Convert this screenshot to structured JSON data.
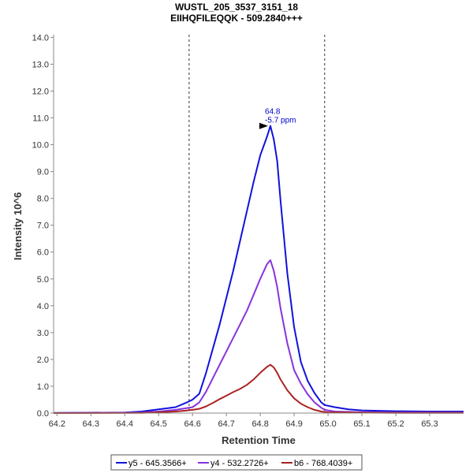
{
  "chart_data": {
    "type": "line",
    "title": "WUSTL_205_3537_3151_18",
    "subtitle": "EIIHQFILEQQK - 509.2840+++",
    "xlabel": "Retention Time",
    "ylabel": "Intensity 10^6",
    "xlim": [
      64.19,
      65.4
    ],
    "ylim": [
      0,
      14.1
    ],
    "x_ticks": [
      "64.2",
      "64.3",
      "64.4",
      "64.5",
      "64.6",
      "64.7",
      "64.8",
      "64.9",
      "65.0",
      "65.1",
      "65.2",
      "65.3"
    ],
    "y_ticks": [
      "0.0",
      "1.0",
      "2.0",
      "3.0",
      "4.0",
      "5.0",
      "6.0",
      "7.0",
      "8.0",
      "9.0",
      "10.0",
      "11.0",
      "12.0",
      "13.0",
      "14.0"
    ],
    "grid": false,
    "legend_position": "bottom",
    "integration_bounds": [
      64.59,
      64.99
    ],
    "annotation": {
      "x": 64.83,
      "y": 10.7,
      "line1": "64.8",
      "line2": "-5.7 ppm"
    },
    "series": [
      {
        "name": "y5 - 645.3566+",
        "color": "#1111dd",
        "points": [
          [
            64.19,
            0.01
          ],
          [
            64.4,
            0.02
          ],
          [
            64.45,
            0.06
          ],
          [
            64.5,
            0.14
          ],
          [
            64.55,
            0.22
          ],
          [
            64.58,
            0.38
          ],
          [
            64.6,
            0.5
          ],
          [
            64.62,
            0.72
          ],
          [
            64.64,
            1.5
          ],
          [
            64.66,
            2.4
          ],
          [
            64.68,
            3.3
          ],
          [
            64.7,
            4.3
          ],
          [
            64.72,
            5.3
          ],
          [
            64.74,
            6.4
          ],
          [
            64.76,
            7.5
          ],
          [
            64.78,
            8.6
          ],
          [
            64.8,
            9.6
          ],
          [
            64.82,
            10.3
          ],
          [
            64.83,
            10.7
          ],
          [
            64.84,
            10.2
          ],
          [
            64.85,
            9.4
          ],
          [
            64.86,
            7.9
          ],
          [
            64.88,
            5.2
          ],
          [
            64.9,
            3.2
          ],
          [
            64.92,
            1.9
          ],
          [
            64.94,
            1.2
          ],
          [
            64.96,
            0.75
          ],
          [
            64.98,
            0.4
          ],
          [
            64.99,
            0.3
          ],
          [
            65.02,
            0.22
          ],
          [
            65.06,
            0.14
          ],
          [
            65.1,
            0.1
          ],
          [
            65.2,
            0.07
          ],
          [
            65.3,
            0.06
          ],
          [
            65.4,
            0.06
          ]
        ]
      },
      {
        "name": "y4 - 532.2726+",
        "color": "#8833dd",
        "points": [
          [
            64.19,
            0.0
          ],
          [
            64.45,
            0.02
          ],
          [
            64.5,
            0.06
          ],
          [
            64.55,
            0.12
          ],
          [
            64.58,
            0.18
          ],
          [
            64.6,
            0.22
          ],
          [
            64.62,
            0.4
          ],
          [
            64.64,
            0.8
          ],
          [
            64.66,
            1.3
          ],
          [
            64.68,
            1.8
          ],
          [
            64.7,
            2.3
          ],
          [
            64.72,
            2.8
          ],
          [
            64.74,
            3.3
          ],
          [
            64.76,
            3.8
          ],
          [
            64.78,
            4.4
          ],
          [
            64.8,
            5.0
          ],
          [
            64.82,
            5.55
          ],
          [
            64.83,
            5.7
          ],
          [
            64.84,
            5.3
          ],
          [
            64.85,
            4.7
          ],
          [
            64.86,
            3.9
          ],
          [
            64.88,
            2.6
          ],
          [
            64.9,
            1.6
          ],
          [
            64.92,
            1.1
          ],
          [
            64.94,
            0.7
          ],
          [
            64.96,
            0.4
          ],
          [
            64.98,
            0.2
          ],
          [
            64.99,
            0.12
          ],
          [
            65.02,
            0.06
          ],
          [
            65.1,
            0.03
          ],
          [
            65.2,
            0.02
          ],
          [
            65.4,
            0.02
          ]
        ]
      },
      {
        "name": "b6 - 768.4039+",
        "color": "#aa2222",
        "points": [
          [
            64.19,
            0.0
          ],
          [
            64.45,
            0.01
          ],
          [
            64.5,
            0.03
          ],
          [
            64.55,
            0.06
          ],
          [
            64.58,
            0.09
          ],
          [
            64.6,
            0.12
          ],
          [
            64.62,
            0.16
          ],
          [
            64.64,
            0.25
          ],
          [
            64.66,
            0.38
          ],
          [
            64.68,
            0.52
          ],
          [
            64.7,
            0.65
          ],
          [
            64.72,
            0.78
          ],
          [
            64.74,
            0.9
          ],
          [
            64.76,
            1.05
          ],
          [
            64.78,
            1.25
          ],
          [
            64.8,
            1.5
          ],
          [
            64.82,
            1.72
          ],
          [
            64.83,
            1.8
          ],
          [
            64.84,
            1.7
          ],
          [
            64.85,
            1.5
          ],
          [
            64.86,
            1.25
          ],
          [
            64.88,
            0.85
          ],
          [
            64.9,
            0.55
          ],
          [
            64.92,
            0.35
          ],
          [
            64.94,
            0.22
          ],
          [
            64.96,
            0.12
          ],
          [
            64.98,
            0.06
          ],
          [
            65.0,
            0.03
          ],
          [
            65.05,
            0.02
          ],
          [
            65.2,
            0.01
          ],
          [
            65.4,
            0.01
          ]
        ]
      }
    ]
  }
}
